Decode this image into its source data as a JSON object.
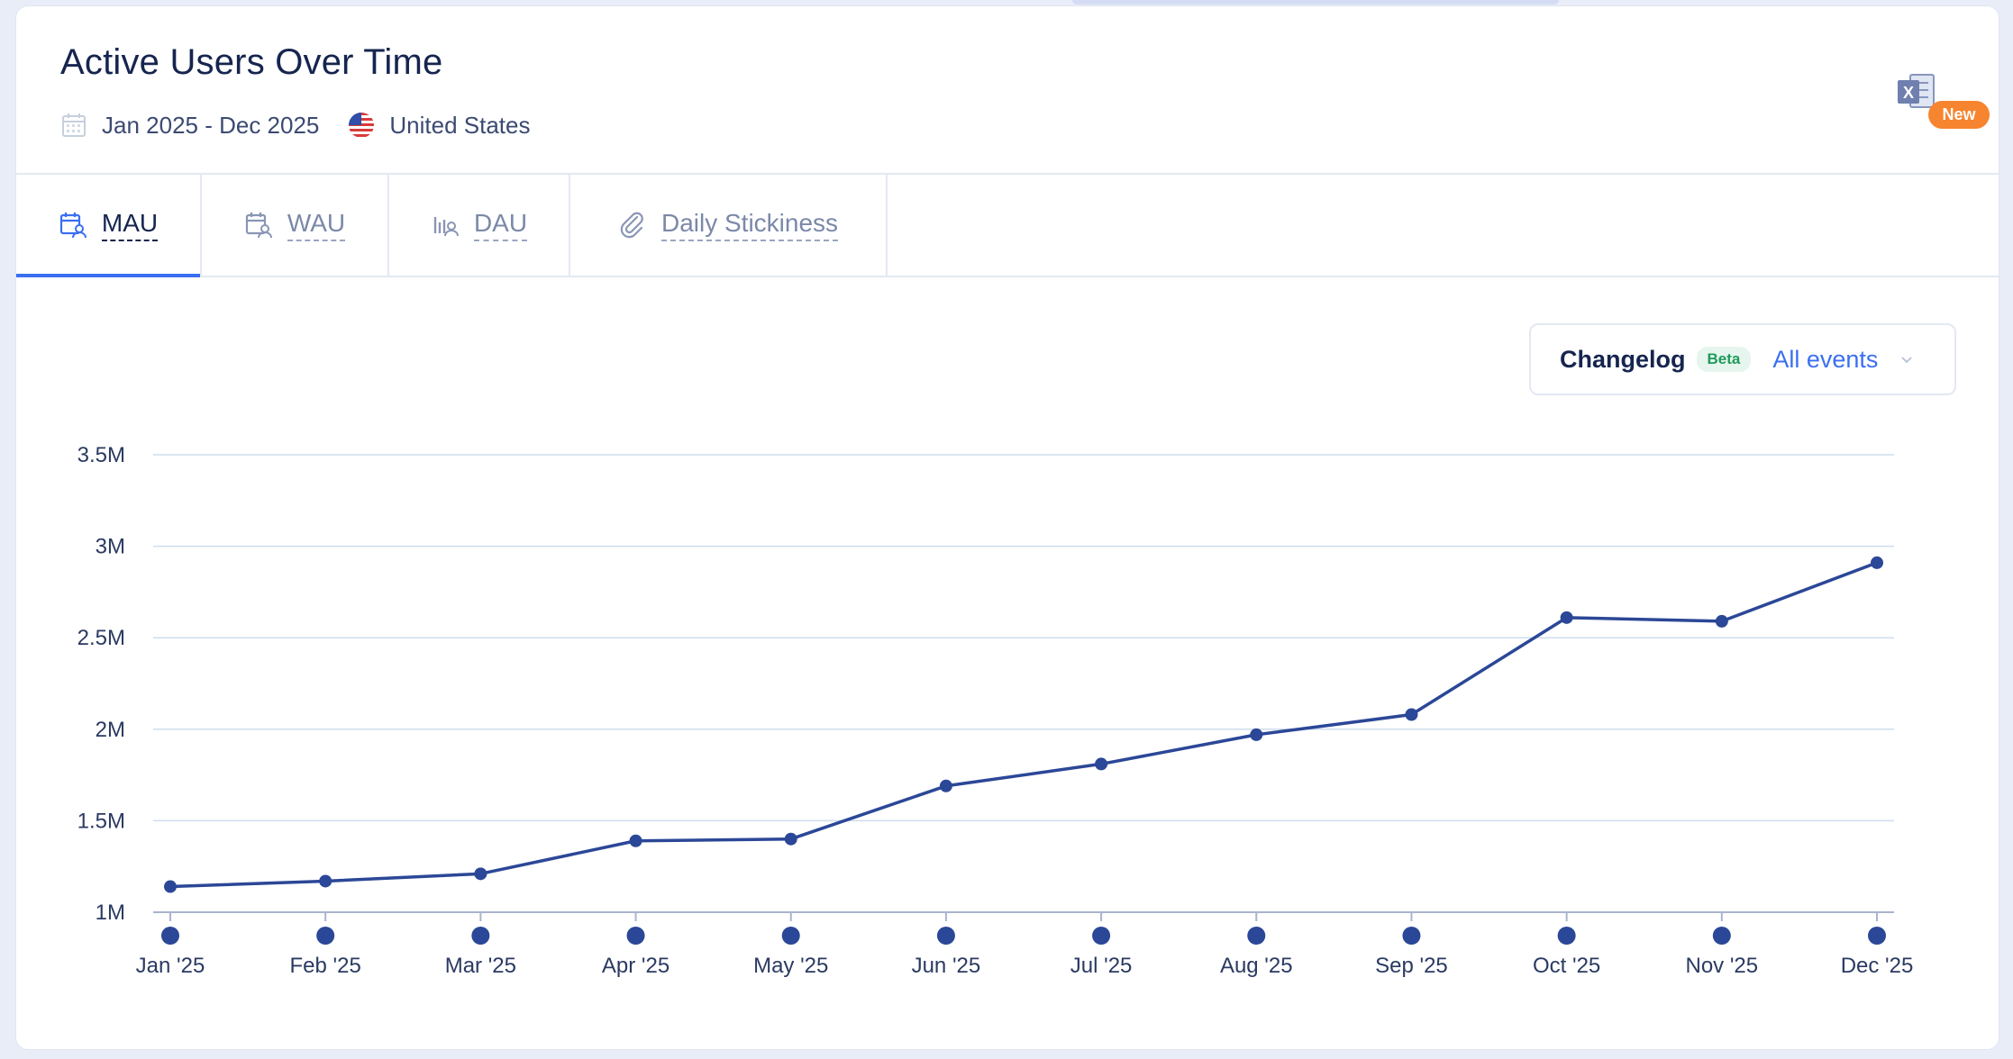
{
  "header": {
    "title": "Active Users Over Time",
    "date_range": "Jan 2025 - Dec 2025",
    "region": "United States",
    "icons": {
      "date": "calendar-icon",
      "region": "us-flag-icon"
    }
  },
  "export": {
    "icon": "excel-export-icon",
    "badge": "New"
  },
  "tabs": [
    {
      "label": "MAU",
      "icon": "calendar-user-icon",
      "active": true
    },
    {
      "label": "WAU",
      "icon": "calendar-user-icon",
      "active": false
    },
    {
      "label": "DAU",
      "icon": "bar-user-icon",
      "active": false
    },
    {
      "label": "Daily Stickiness",
      "icon": "paperclip-icon",
      "active": false
    }
  ],
  "changelog": {
    "label": "Changelog",
    "badge": "Beta",
    "value": "All events",
    "icon": "chevron-down-icon"
  },
  "colors": {
    "accent": "#3b6ff2",
    "line": "#2b4797",
    "grid": "#cfdcee",
    "badge": "#f7842e",
    "title": "#16254f"
  },
  "chart_data": {
    "type": "line",
    "title": "",
    "xlabel": "",
    "ylabel": "",
    "categories": [
      "Jan '25",
      "Feb '25",
      "Mar '25",
      "Apr '25",
      "May '25",
      "Jun '25",
      "Jul '25",
      "Aug '25",
      "Sep '25",
      "Oct '25",
      "Nov '25",
      "Dec '25"
    ],
    "series": [
      {
        "values": [
          1140000,
          1170000,
          1210000,
          1390000,
          1400000,
          1690000,
          1810000,
          1970000,
          2080000,
          2610000,
          2590000,
          2910000
        ]
      }
    ],
    "ylim": [
      1000000,
      3500000
    ],
    "yticks": [
      {
        "value": 3500000,
        "label": "3.5M"
      },
      {
        "value": 3000000,
        "label": "3M"
      },
      {
        "value": 2500000,
        "label": "2.5M"
      },
      {
        "value": 2000000,
        "label": "2M"
      },
      {
        "value": 1500000,
        "label": "1.5M"
      },
      {
        "value": 1000000,
        "label": "1M"
      }
    ],
    "grid": true,
    "legend": "none"
  }
}
